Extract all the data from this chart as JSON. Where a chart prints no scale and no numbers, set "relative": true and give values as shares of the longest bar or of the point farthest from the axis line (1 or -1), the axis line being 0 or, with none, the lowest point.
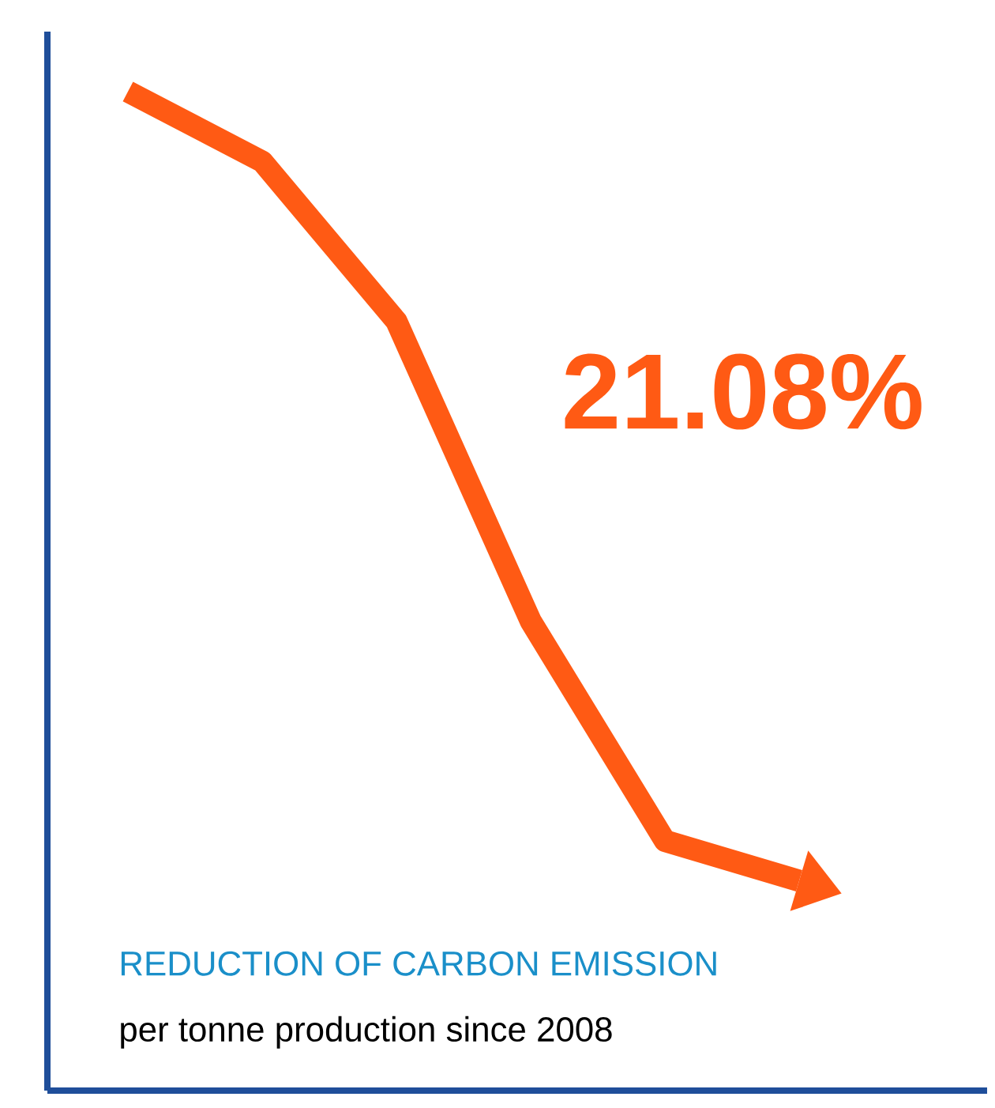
{
  "chart_data": {
    "type": "line",
    "relative": true,
    "title": "REDUCTION  OF CARBON EMISSION",
    "subtitle": "per tonne production since 2008",
    "annotations": [
      "21.08%"
    ],
    "categories": [
      null,
      null,
      null,
      null,
      null,
      null
    ],
    "series": [
      {
        "color": "#ff5a14",
        "values": [
          1,
          0.93,
          0.77,
          0.47,
          0.25,
          0.21
        ]
      }
    ],
    "marker": "none",
    "line_style": "solid"
  }
}
